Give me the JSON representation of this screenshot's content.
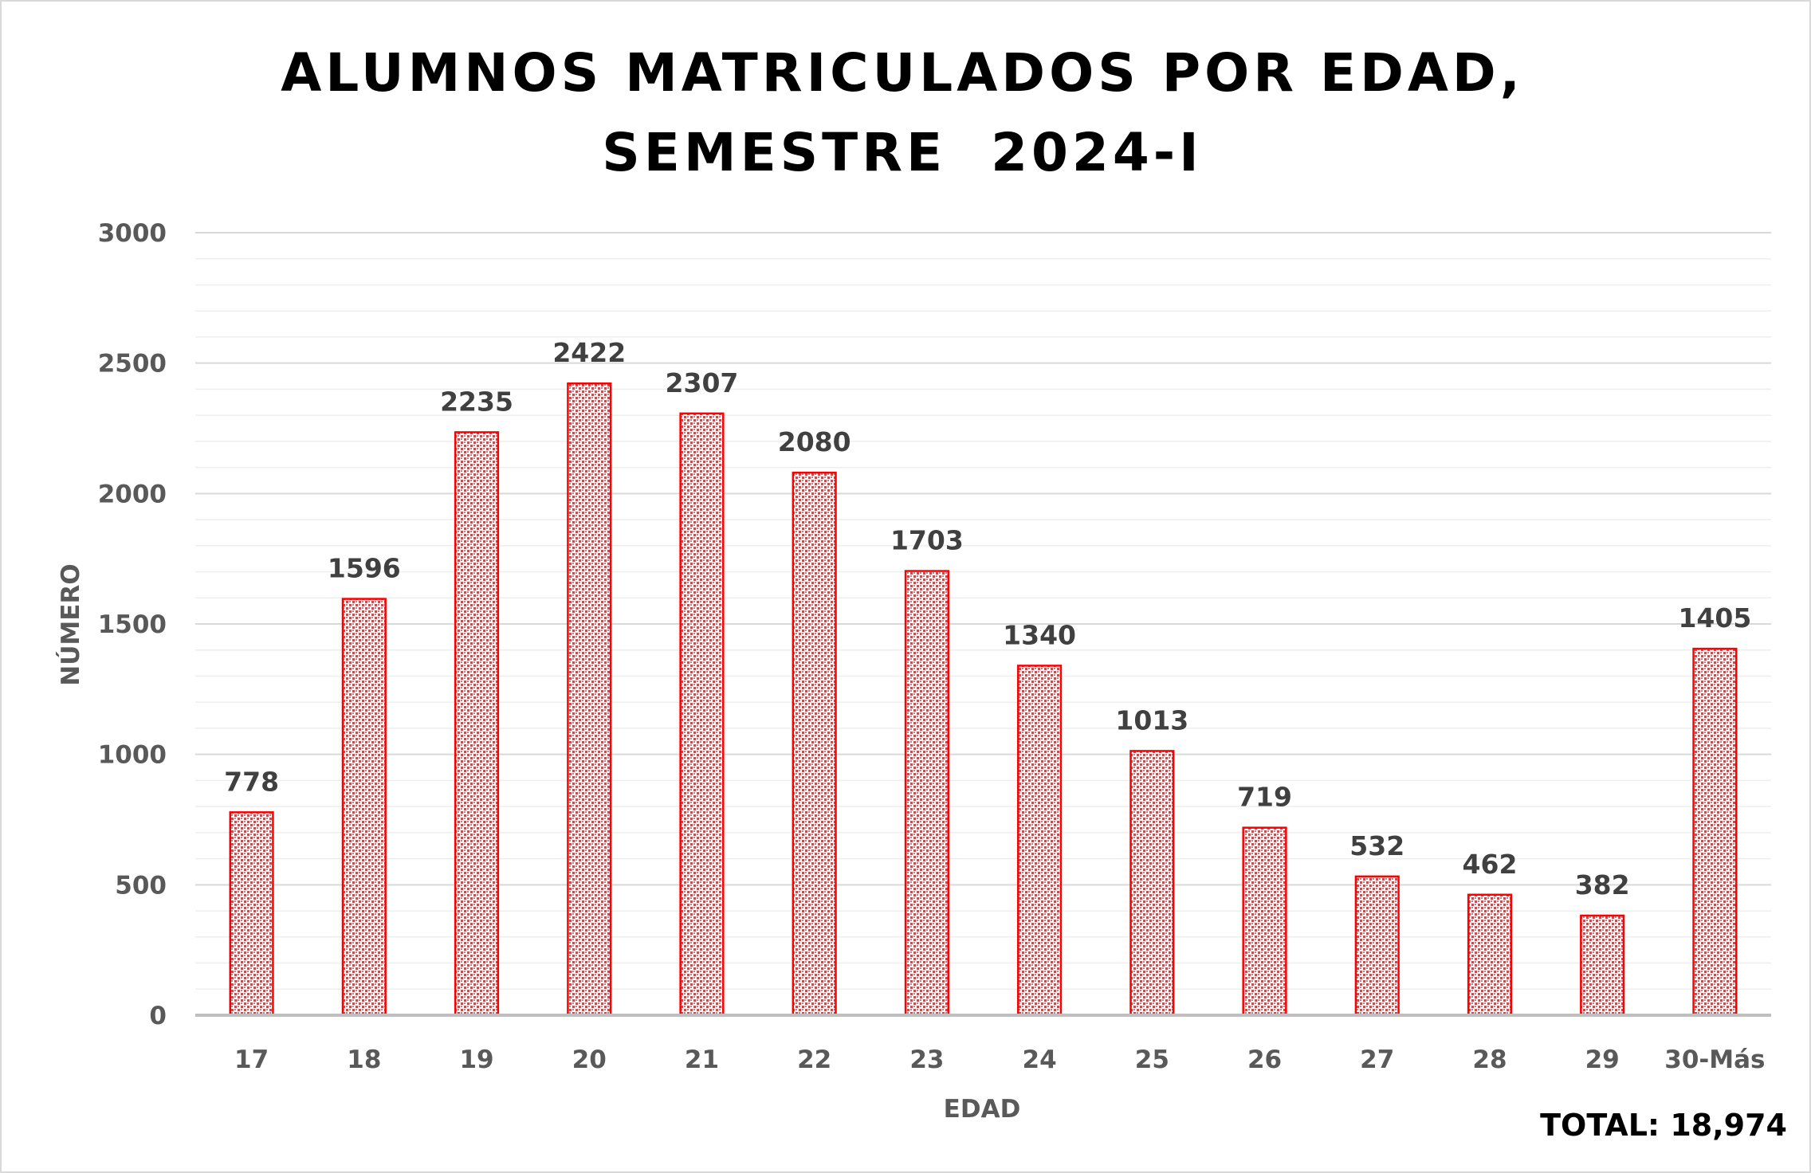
{
  "chart_data": {
    "type": "bar",
    "title_lines": [
      "ALUMNOS MATRICULADOS POR EDAD,",
      "SEMESTRE  2024-I"
    ],
    "xlabel": "EDAD",
    "ylabel": "NÚMERO",
    "categories": [
      "17",
      "18",
      "19",
      "20",
      "21",
      "22",
      "23",
      "24",
      "25",
      "26",
      "27",
      "28",
      "29",
      "30-Más"
    ],
    "values": [
      778,
      1596,
      2235,
      2422,
      2307,
      2080,
      1703,
      1340,
      1013,
      719,
      532,
      462,
      382,
      1405
    ],
    "ylim": [
      0,
      3000
    ],
    "yticks": [
      0,
      500,
      1000,
      1500,
      2000,
      2500,
      3000
    ],
    "minor_grid_step": 100,
    "grid": true,
    "legend": "none",
    "total_label": "TOTAL: 18,974",
    "colors": {
      "bar_border": "#ff0000",
      "bar_pattern_red": "#c0504d",
      "bar_pattern_blue": "#8497b0",
      "grid_major": "#d9d9d9",
      "grid_minor": "#eeeeee",
      "axis": "#bfbfbf"
    }
  }
}
